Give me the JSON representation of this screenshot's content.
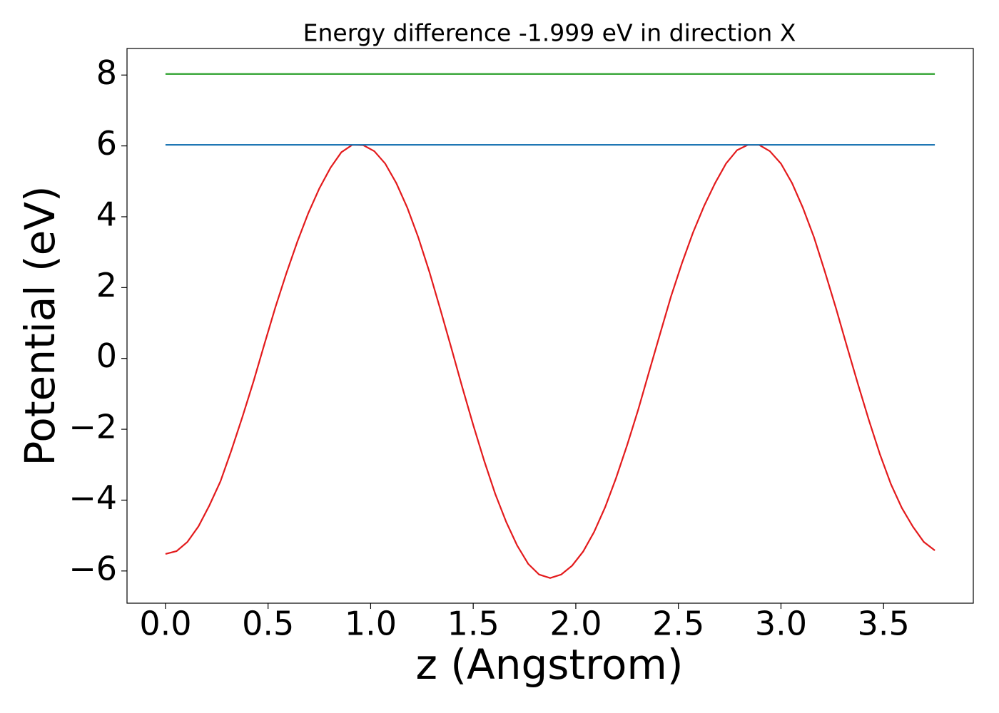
{
  "chart_data": {
    "type": "line",
    "title": "Energy difference -1.999 eV in direction X",
    "x_label": "z (Angstrom)",
    "y_label": "Potential (eV)",
    "series": [
      {
        "color": "#e31a1c",
        "x": [
          0,
          0.054,
          0.107,
          0.161,
          0.214,
          0.268,
          0.321,
          0.375,
          0.429,
          0.482,
          0.536,
          0.589,
          0.643,
          0.696,
          0.75,
          0.804,
          0.857,
          0.911,
          0.964,
          1.018,
          1.071,
          1.125,
          1.179,
          1.232,
          1.286,
          1.339,
          1.393,
          1.446,
          1.5,
          1.554,
          1.607,
          1.661,
          1.714,
          1.768,
          1.821,
          1.875,
          1.929,
          1.982,
          2.036,
          2.089,
          2.143,
          2.196,
          2.25,
          2.304,
          2.357,
          2.411,
          2.464,
          2.518,
          2.571,
          2.625,
          2.679,
          2.732,
          2.786,
          2.839,
          2.893,
          2.946,
          3.0,
          3.054,
          3.107,
          3.161,
          3.214,
          3.268,
          3.321,
          3.375,
          3.429,
          3.482,
          3.536,
          3.589,
          3.643,
          3.696,
          3.75
        ],
        "values": [
          -5.52,
          -5.44,
          -5.18,
          -4.74,
          -4.15,
          -3.47,
          -2.6,
          -1.65,
          -0.65,
          0.4,
          1.45,
          2.4,
          3.3,
          4.1,
          4.8,
          5.38,
          5.82,
          6.03,
          6.02,
          5.85,
          5.5,
          4.95,
          4.25,
          3.42,
          2.45,
          1.4,
          0.3,
          -0.8,
          -1.88,
          -2.9,
          -3.82,
          -4.62,
          -5.28,
          -5.8,
          -6.1,
          -6.2,
          -6.1,
          -5.85,
          -5.45,
          -4.9,
          -4.2,
          -3.38,
          -2.45,
          -1.45,
          -0.38,
          0.7,
          1.75,
          2.7,
          3.55,
          4.3,
          4.95,
          5.5,
          5.88,
          6.03,
          6.03,
          5.85,
          5.5,
          4.95,
          4.25,
          3.42,
          2.45,
          1.42,
          0.35,
          -0.72,
          -1.75,
          -2.7,
          -3.55,
          -4.22,
          -4.75,
          -5.18,
          -5.42
        ]
      },
      {
        "color": "#1f77b4",
        "x": [
          0,
          3.75
        ],
        "values": [
          6.03,
          6.03
        ]
      },
      {
        "color": "#2ca02c",
        "x": [
          0,
          3.75
        ],
        "values": [
          8.03,
          8.03
        ]
      }
    ],
    "xlim": [
      -0.1875,
      3.9375
    ],
    "ylim": [
      -6.91,
      8.75
    ],
    "xticks": [
      {
        "value": 0,
        "label": "0.0"
      },
      {
        "value": 0.5,
        "label": "0.5"
      },
      {
        "value": 1,
        "label": "1.0"
      },
      {
        "value": 1.5,
        "label": "1.5"
      },
      {
        "value": 2,
        "label": "2.0"
      },
      {
        "value": 2.5,
        "label": "2.5"
      },
      {
        "value": 3,
        "label": "3.0"
      },
      {
        "value": 3.5,
        "label": "3.5"
      }
    ],
    "yticks": [
      {
        "value": -6,
        "label": "−6"
      },
      {
        "value": -4,
        "label": "−4"
      },
      {
        "value": -2,
        "label": "−2"
      },
      0,
      2,
      4,
      6,
      8
    ],
    "grid": false
  }
}
